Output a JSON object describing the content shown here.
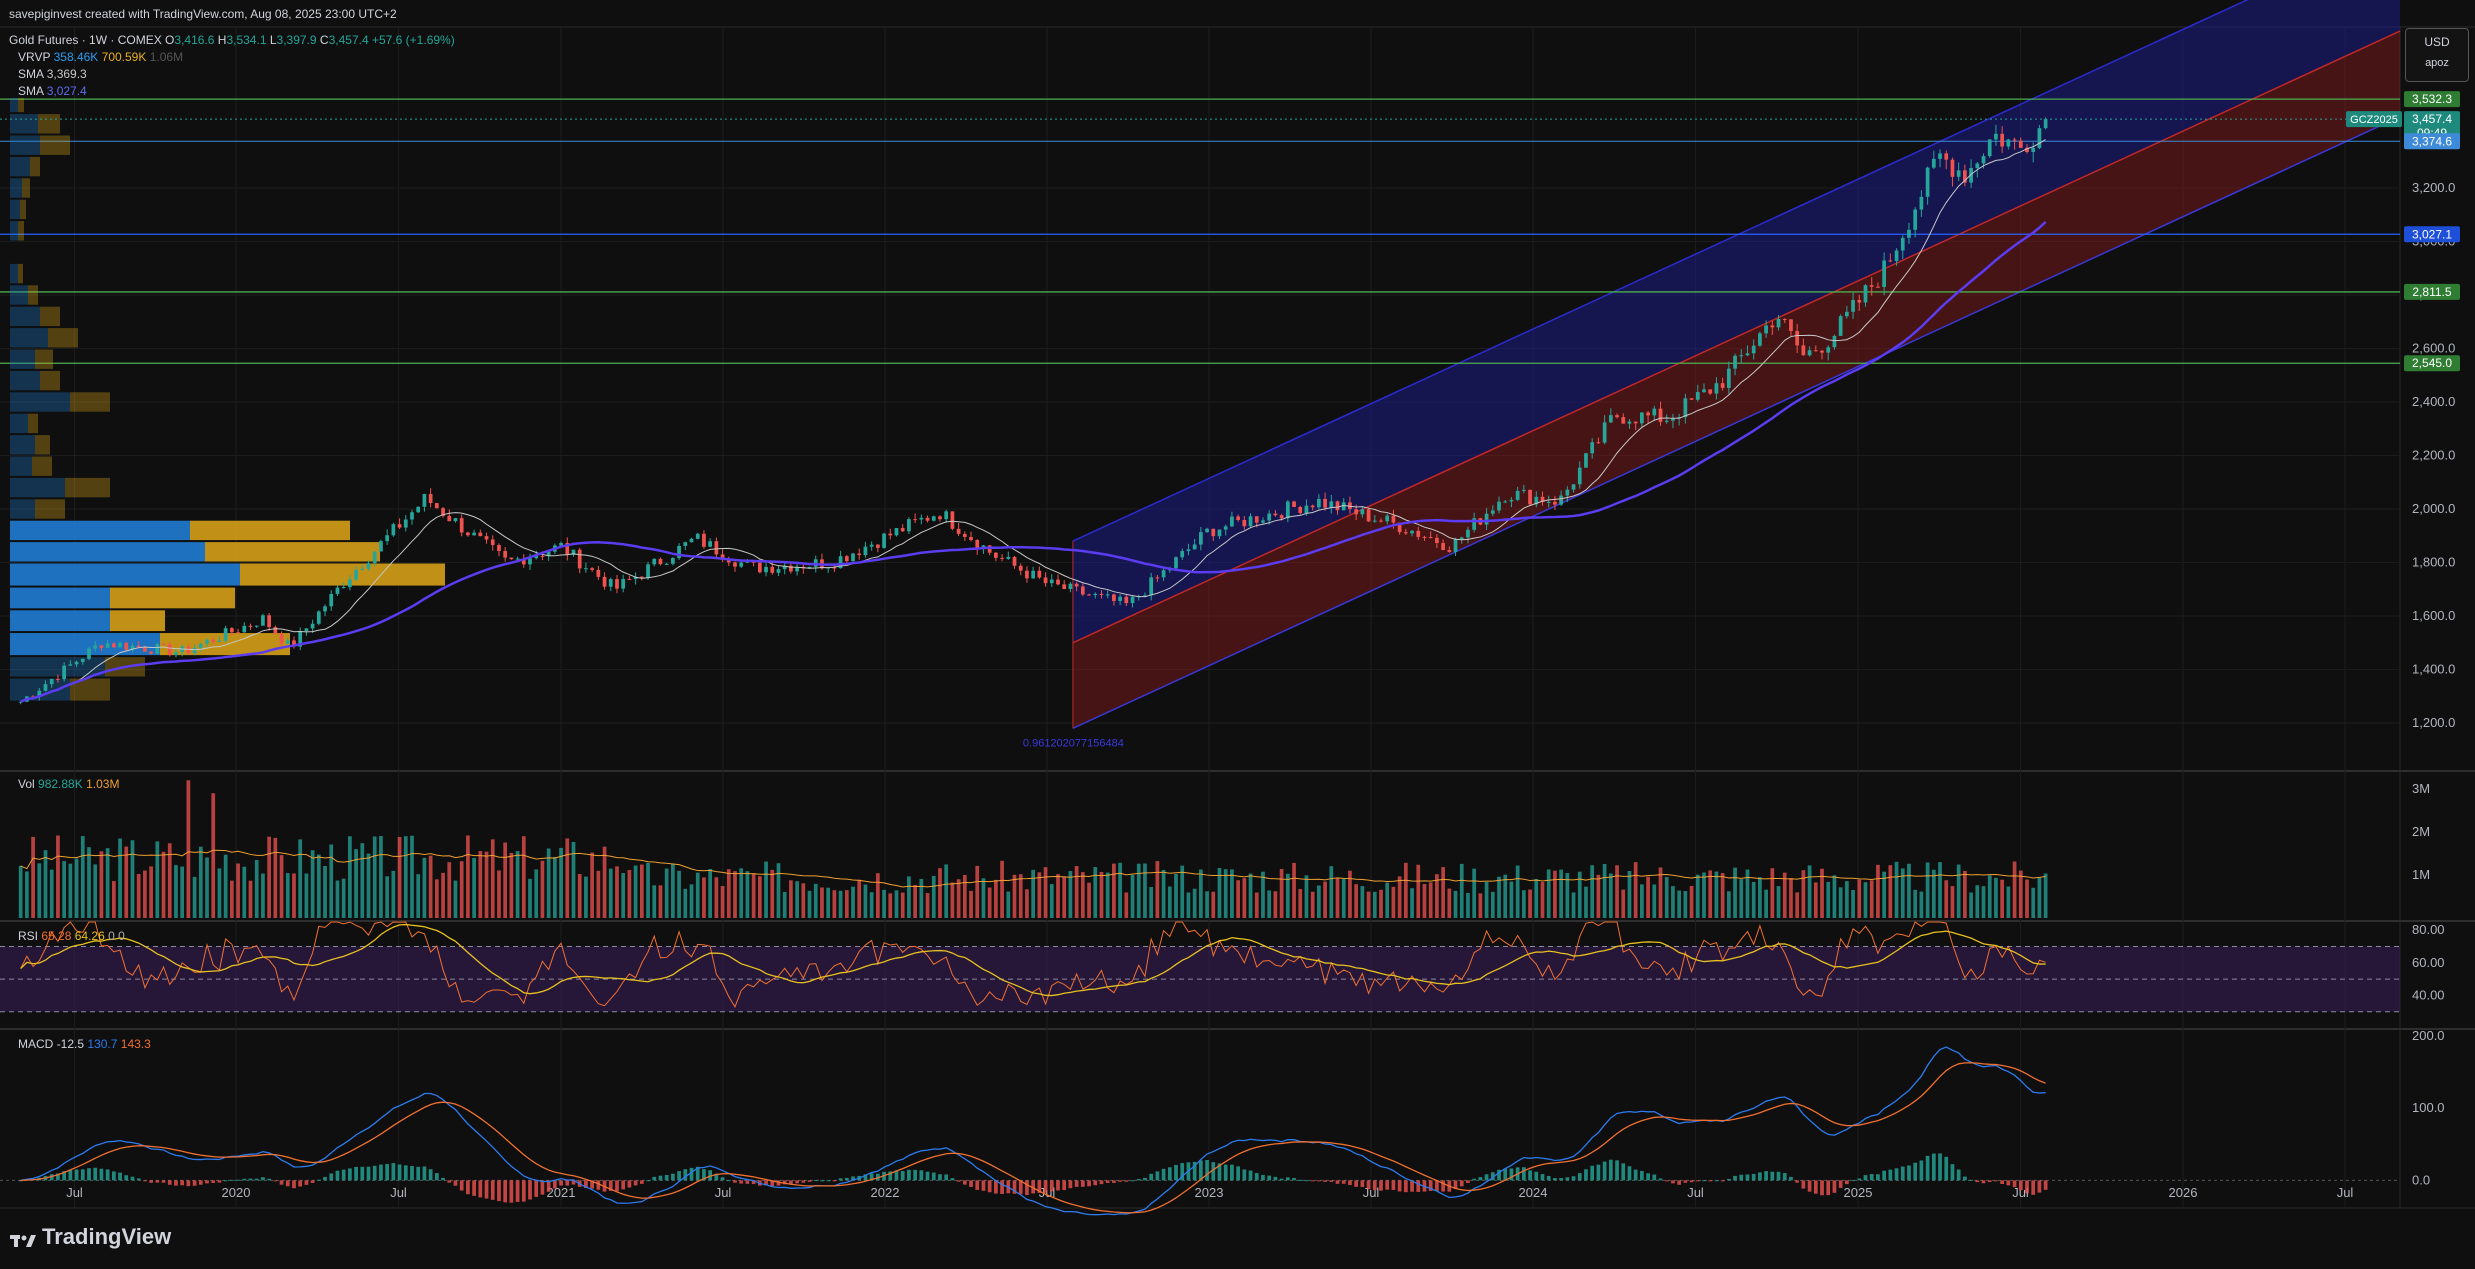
{
  "header": {
    "credit": "savepiginvest created with TradingView.com, Aug 08, 2025 23:00 UTC+2",
    "symbol": "Gold Futures · 1W · COMEX",
    "open_label": "O",
    "open": "3,416.6",
    "high_label": "H",
    "high": "3,534.1",
    "low_label": "L",
    "low": "3,397.9",
    "close_label": "C",
    "close": "3,457.4",
    "change": "+57.6 (+1.69%)",
    "vrvp_label": "VRVP",
    "vrvp_1": "358.46K",
    "vrvp_2": "700.59K",
    "vrvp_3": "1.06M",
    "sma1_label": "SMA",
    "sma1_value": "3,369.3",
    "sma2_label": "SMA",
    "sma2_value": "3,027.4"
  },
  "currency_box": {
    "currency": "USD",
    "user": "apoz"
  },
  "brand": {
    "name": "TradingView"
  },
  "price_tags": {
    "ticker": "GCZ2025",
    "last": "3,457.4",
    "countdown": "09:49",
    "sma_fast": "3,374.6",
    "lvl_3532": "3,532.3",
    "lvl_3027": "3,027.1",
    "lvl_2811": "2,811.5",
    "lvl_2545": "2,545.0"
  },
  "channel_label": "0.961202077156484",
  "colors": {
    "background": "#0f0f0f",
    "up": "#26a69a",
    "down": "#ef5350",
    "sma_fast": "#c8c8c8",
    "sma_slow": "#5b3cf0",
    "channel_blue": "#1c1ca0",
    "channel_red": "#8a1a1a",
    "level_green": "#4caf50",
    "level_blue": "#2962ff",
    "vrvp_blue": "#1f77c8",
    "vrvp_gold": "#d4a017"
  },
  "chart_data": [
    {
      "type": "candlestick",
      "title": "Gold Futures · 1W · COMEX",
      "x_ticks": [
        "Jul",
        "2020",
        "Jul",
        "2021",
        "Jul",
        "2022",
        "Jul",
        "2023",
        "Jul",
        "2024",
        "Jul",
        "2025",
        "Jul",
        "2026",
        "Jul"
      ],
      "y_ticks": [
        "1,200.0",
        "1,400.0",
        "1,600.0",
        "1,800.0",
        "2,000.0",
        "2,200.0",
        "2,400.0",
        "2,600.0",
        "2,800.0",
        "3,000.0",
        "3,200.0"
      ],
      "ylim": [
        1100,
        3560
      ],
      "date_range": [
        "2019-05",
        "2026-10"
      ],
      "horizontal_levels": [
        3532.3,
        3027.1,
        2811.5,
        2545.0,
        3374.6
      ],
      "price_path": [
        [
          "2019-05",
          1280
        ],
        [
          "2019-08",
          1500
        ],
        [
          "2019-11",
          1465
        ],
        [
          "2020-02",
          1590
        ],
        [
          "2020-03",
          1480
        ],
        [
          "2020-05",
          1730
        ],
        [
          "2020-08",
          2040
        ],
        [
          "2020-11",
          1800
        ],
        [
          "2021-01",
          1860
        ],
        [
          "2021-03",
          1700
        ],
        [
          "2021-06",
          1890
        ],
        [
          "2021-08",
          1780
        ],
        [
          "2021-11",
          1800
        ],
        [
          "2022-03",
          1990
        ],
        [
          "2022-05",
          1830
        ],
        [
          "2022-07",
          1720
        ],
        [
          "2022-10",
          1640
        ],
        [
          "2023-01",
          1920
        ],
        [
          "2023-05",
          2030
        ],
        [
          "2023-08",
          1940
        ],
        [
          "2023-10",
          1860
        ],
        [
          "2023-12",
          2060
        ],
        [
          "2024-02",
          2030
        ],
        [
          "2024-04",
          2350
        ],
        [
          "2024-06",
          2340
        ],
        [
          "2024-08",
          2480
        ],
        [
          "2024-10",
          2730
        ],
        [
          "2024-11",
          2570
        ],
        [
          "2024-12",
          2640
        ],
        [
          "2025-02",
          2900
        ],
        [
          "2025-04",
          3320
        ],
        [
          "2025-05",
          3250
        ],
        [
          "2025-06",
          3400
        ],
        [
          "2025-07",
          3350
        ],
        [
          "2025-08",
          3457.4
        ]
      ],
      "sma_fast_last": 3369.3,
      "sma_slow_last": 3027.4
    },
    {
      "type": "bar",
      "title": "Vol",
      "legend": [
        "982.88K",
        "1.03M"
      ],
      "y_ticks": [
        "1M",
        "2M",
        "3M"
      ],
      "ylim": [
        0,
        3300000
      ]
    },
    {
      "type": "line",
      "title": "RSI",
      "legend": [
        "65.28",
        "64.26",
        "0",
        "0"
      ],
      "y_ticks": [
        "40.00",
        "60.00",
        "80.00"
      ],
      "ylim": [
        20,
        85
      ],
      "bands": [
        30,
        50,
        70
      ]
    },
    {
      "type": "line",
      "title": "MACD",
      "legend": [
        "-12.5",
        "130.7",
        "143.3"
      ],
      "y_ticks": [
        "0.0",
        "100.0",
        "200.0"
      ],
      "ylim": [
        -30,
        200
      ]
    }
  ]
}
